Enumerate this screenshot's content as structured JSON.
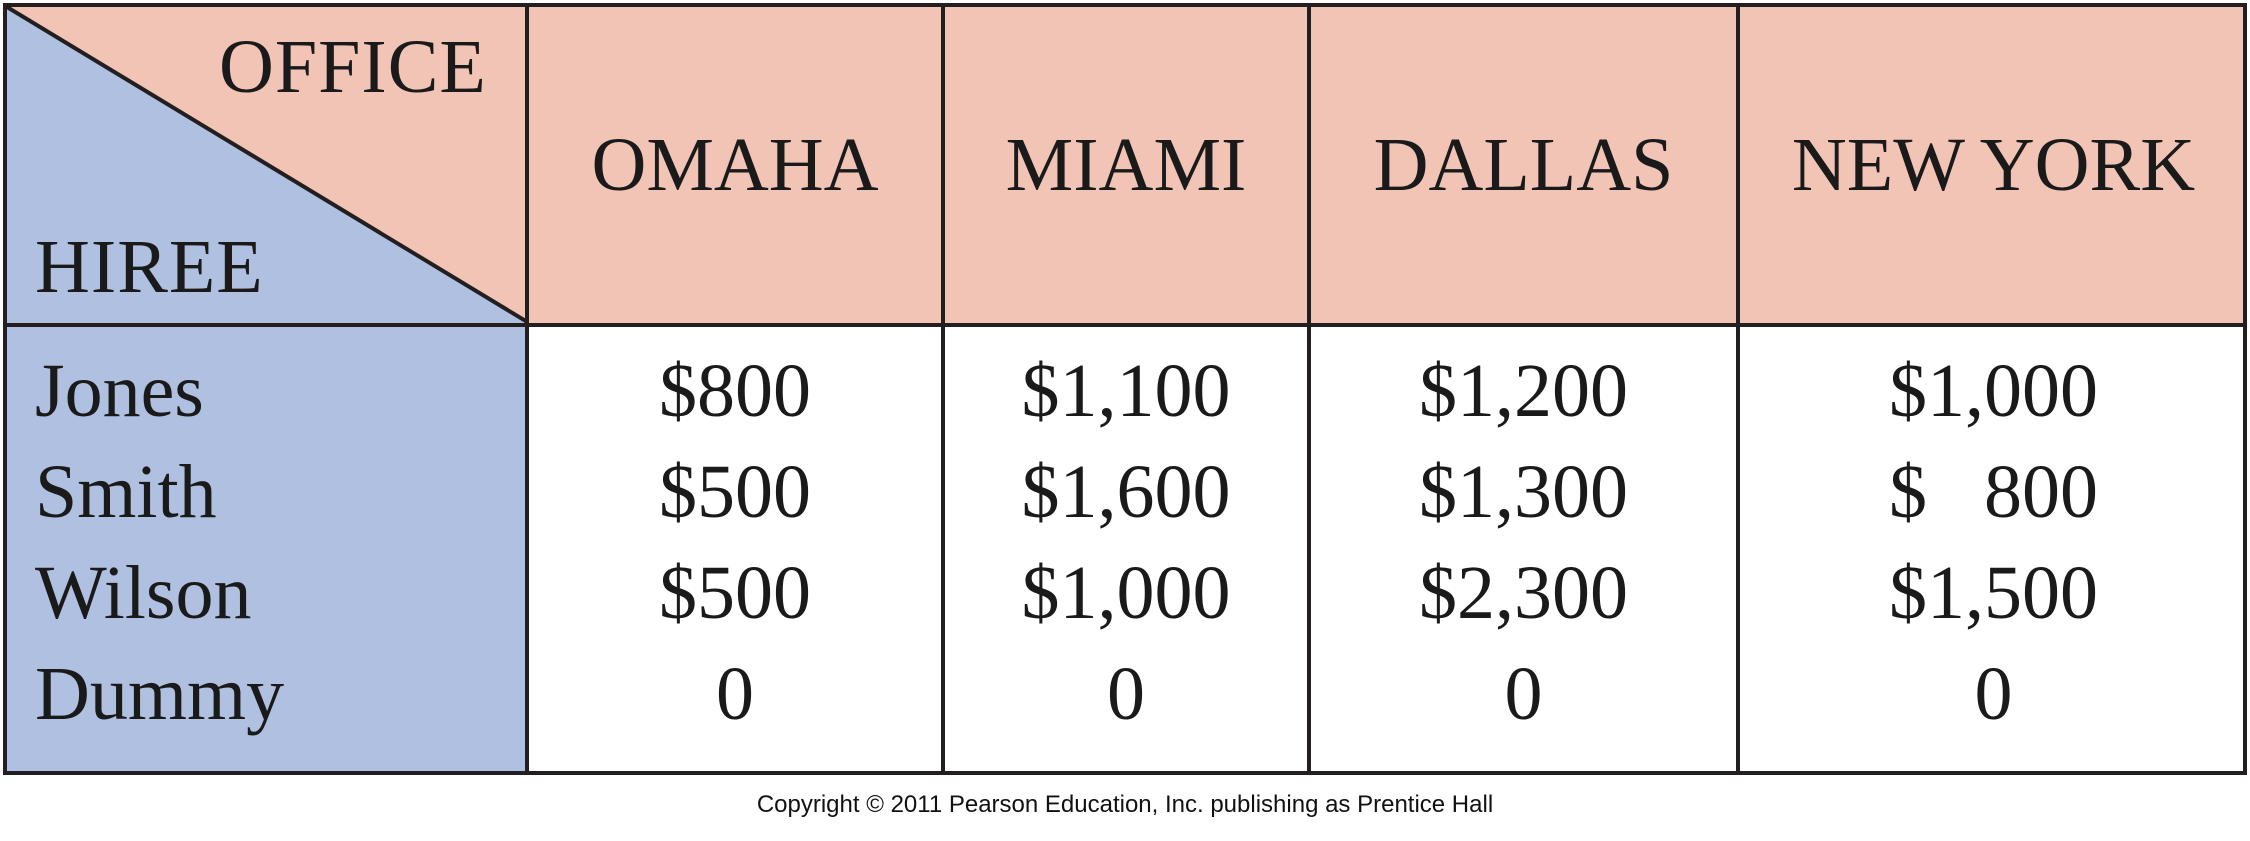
{
  "table": {
    "corner": {
      "top_label": "OFFICE",
      "bottom_label": "HIREE"
    },
    "columns": [
      "OMAHA",
      "MIAMI",
      "DALLAS",
      "NEW YORK"
    ],
    "rows": [
      {
        "hiree": "Jones",
        "costs": [
          "$800",
          "$1,100",
          "$1,200",
          "$1,000"
        ]
      },
      {
        "hiree": "Smith",
        "costs": [
          "$500",
          "$1,600",
          "$1,300",
          "$   800"
        ]
      },
      {
        "hiree": "Wilson",
        "costs": [
          "$500",
          "$1,000",
          "$2,300",
          "$1,500"
        ]
      },
      {
        "hiree": "Dummy",
        "costs": [
          "0",
          "0",
          "0",
          "0"
        ]
      }
    ],
    "colors": {
      "header_bg": "#f1c4b6",
      "row_header_bg": "#b0c0e0",
      "body_bg": "#ffffff",
      "line": "#231f20"
    }
  },
  "footer": {
    "copyright": "Copyright © 2011 Pearson Education, Inc. publishing as Prentice Hall"
  }
}
